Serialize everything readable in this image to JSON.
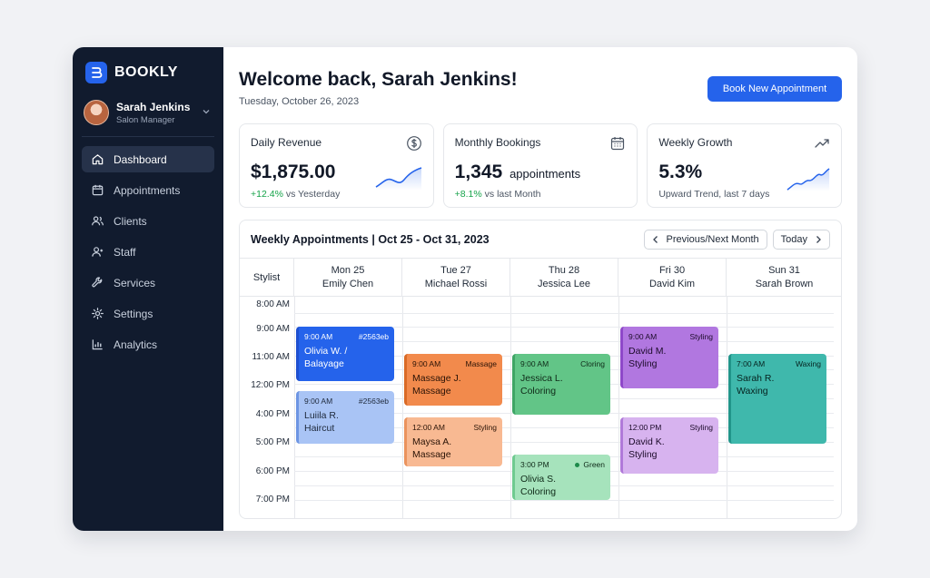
{
  "brand": {
    "name": "BOOKLY"
  },
  "user": {
    "name": "Sarah Jenkins",
    "role": "Salon Manager"
  },
  "nav": [
    {
      "label": "Dashboard",
      "icon": "home-icon",
      "active": true
    },
    {
      "label": "Appointments",
      "icon": "calendar-icon"
    },
    {
      "label": "Clients",
      "icon": "users-icon"
    },
    {
      "label": "Staff",
      "icon": "staff-icon"
    },
    {
      "label": "Services",
      "icon": "wrench-icon"
    },
    {
      "label": "Settings",
      "icon": "gear-icon"
    },
    {
      "label": "Analytics",
      "icon": "bar-chart-icon"
    }
  ],
  "header": {
    "title": "Welcome back, Sarah Jenkins!",
    "date": "Tuesday, October 26, 2023",
    "book_button": "Book New Appointment"
  },
  "cards": {
    "revenue": {
      "title": "Daily Revenue",
      "value": "$1,875.00",
      "change": "+12.4%",
      "change_suffix": " vs Yesterday",
      "icon": "dollar-icon"
    },
    "bookings": {
      "title": "Monthly Bookings",
      "value": "1,345",
      "unit": "appointments",
      "change": "+8.1%",
      "change_suffix": " vs last Month",
      "icon": "calendar-icon"
    },
    "growth": {
      "title": "Weekly Growth",
      "value": "5.3%",
      "sub": "Upward Trend, last 7 days",
      "icon": "trend-up-icon"
    }
  },
  "calendar": {
    "title": "Weekly Appointments | Oct 25 - Oct 31, 2023",
    "prev_next": "Previous/Next Month",
    "today": "Today",
    "stylist_label": "Stylist",
    "columns": [
      {
        "day": "Mon 25",
        "stylist": "Emily Chen"
      },
      {
        "day": "Tue 27",
        "stylist": "Michael Rossi"
      },
      {
        "day": "Thu 28",
        "stylist": "Jessica Lee"
      },
      {
        "day": "Fri 30",
        "stylist": "David Kim"
      },
      {
        "day": "Sun 31",
        "stylist": "Sarah Brown"
      }
    ],
    "times": [
      "8:00 AM",
      "9:00 AM",
      "11:00 AM",
      "12:00 PM",
      "4:00 PM",
      "5:00 PM",
      "6:00 PM",
      "7:00 PM"
    ],
    "appointments": [
      {
        "time": "9:00 AM",
        "tag": "#2563eb",
        "line1": "Olivia W. /",
        "line2": "Balayage"
      },
      {
        "time": "9:00 AM",
        "tag": "#2563eb",
        "line1": "Luiila R.",
        "line2": "Haircut"
      },
      {
        "time": "9:00 AM",
        "tag": "Massage",
        "line1": "Massage J.",
        "line2": "Massage"
      },
      {
        "time": "12:00 AM",
        "tag": "Styling",
        "line1": "Maysa A.",
        "line2": "Massage"
      },
      {
        "time": "9:00 AM",
        "tag": "Cloring",
        "line1": "Jessica L.",
        "line2": "Coloring"
      },
      {
        "time": "3:00 PM",
        "tag": "Green",
        "line1": "Olivia S.",
        "line2": "Coloring"
      },
      {
        "time": "9:00 AM",
        "tag": "Styling",
        "line1": "David M.",
        "line2": "Styling"
      },
      {
        "time": "12:00 PM",
        "tag": "Styling",
        "line1": "David K.",
        "line2": "Styling"
      },
      {
        "time": "7:00 AM",
        "tag": "Waxing",
        "line1": "Sarah R.",
        "line2": "Waxing"
      }
    ]
  },
  "colors": {
    "primary": "#2563eb",
    "sidebar": "#111b2e",
    "positive": "#16a34a"
  }
}
